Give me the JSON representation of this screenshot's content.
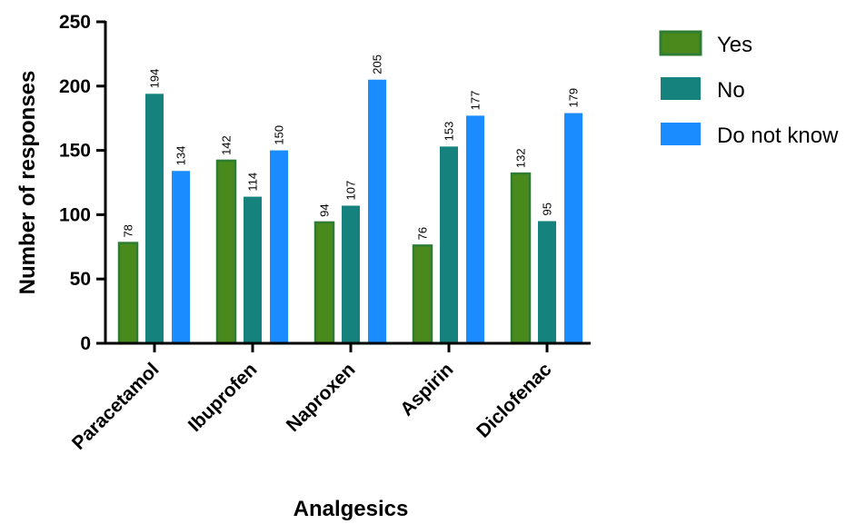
{
  "chart_data": {
    "type": "bar",
    "categories": [
      "Paracetamol",
      "Ibuprofen",
      "Naproxen",
      "Aspirin",
      "Diclofenac"
    ],
    "series": [
      {
        "name": "Yes",
        "values": [
          78,
          142,
          94,
          76,
          132
        ],
        "color": "#4a8a1c",
        "border": "#2e7d32"
      },
      {
        "name": "No",
        "values": [
          194,
          114,
          107,
          153,
          95
        ],
        "color": "#16827d"
      },
      {
        "name": "Do not know",
        "values": [
          134,
          150,
          205,
          177,
          179
        ],
        "color": "#1a8cff"
      }
    ],
    "xlabel": "Analgesics",
    "ylabel": "Number of responses",
    "ylim": [
      0,
      250
    ],
    "yticks": [
      0,
      50,
      100,
      150,
      200,
      250
    ],
    "grid": false,
    "legend": "top-right",
    "data_labels": true
  }
}
